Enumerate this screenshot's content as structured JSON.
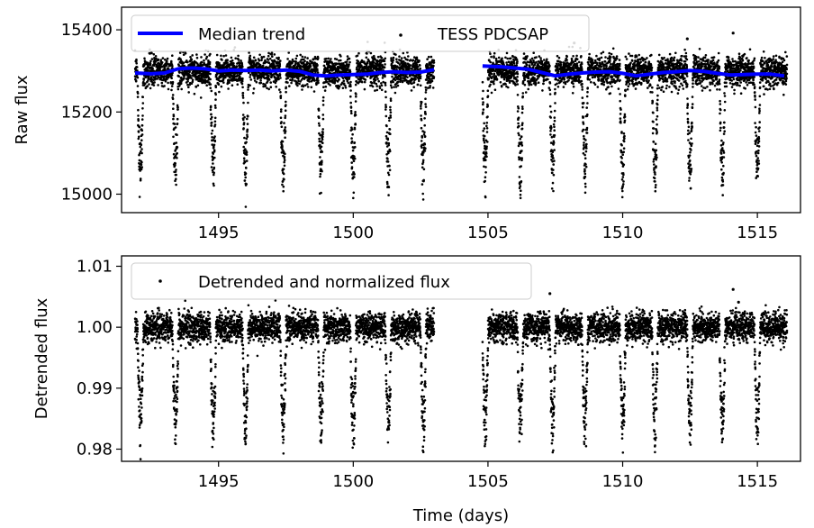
{
  "chart_data": [
    {
      "type": "scatter",
      "title": "",
      "xlabel": "",
      "ylabel": "Raw flux",
      "xlim": [
        1491.4,
        1516.6
      ],
      "ylim": [
        14955,
        15455
      ],
      "xticks": [
        1495,
        1500,
        1505,
        1510,
        1515
      ],
      "xtick_labels": [
        "1495",
        "1500",
        "1505",
        "1510",
        "1515"
      ],
      "yticks": [
        15000,
        15200,
        15400
      ],
      "ytick_labels": [
        "15000",
        "15200",
        "15400"
      ],
      "grid": false,
      "legend_position": "top",
      "series": [
        {
          "name": "Median trend",
          "kind": "line",
          "color": "#0000ff",
          "segments": [
            {
              "x": [
                1491.9,
                1492.5,
                1493.0,
                1493.5,
                1494.0,
                1494.5,
                1495.0,
                1495.5,
                1496.0,
                1496.5,
                1497.0,
                1497.5,
                1498.0,
                1498.5,
                1499.0,
                1499.5,
                1500.0,
                1500.5,
                1501.0,
                1501.5,
                1502.0,
                1502.5,
                1503.0
              ],
              "y": [
                15295,
                15293,
                15295,
                15305,
                15307,
                15305,
                15300,
                15302,
                15301,
                15302,
                15300,
                15302,
                15299,
                15290,
                15288,
                15290,
                15291,
                15292,
                15296,
                15298,
                15296,
                15297,
                15303
              ]
            },
            {
              "x": [
                1504.8,
                1505.5,
                1506.0,
                1506.5,
                1507.0,
                1507.5,
                1508.0,
                1508.5,
                1509.0,
                1509.5,
                1510.0,
                1510.5,
                1511.0,
                1511.5,
                1512.0,
                1512.5,
                1513.0,
                1513.5,
                1514.0,
                1514.5,
                1515.0,
                1515.5,
                1516.0
              ],
              "y": [
                15312,
                15310,
                15307,
                15304,
                15296,
                15288,
                15292,
                15295,
                15297,
                15298,
                15294,
                15288,
                15292,
                15296,
                15298,
                15301,
                15299,
                15294,
                15290,
                15291,
                15292,
                15292,
                15288
              ]
            }
          ]
        },
        {
          "name": "TESS PDCSAP",
          "kind": "points",
          "color": "#000000",
          "time_ranges": [
            [
              1491.9,
              1503.0
            ],
            [
              1504.8,
              1516.1
            ]
          ],
          "baseline": 15300,
          "scatter": 18,
          "transit_times": [
            1492.1,
            1493.4,
            1494.8,
            1496.0,
            1497.4,
            1498.8,
            1500.0,
            1501.3,
            1502.6,
            1504.9,
            1506.2,
            1507.4,
            1508.6,
            1510.0,
            1511.2,
            1512.5,
            1513.7,
            1515.0
          ],
          "transit_depth": 300,
          "outliers": [
            [
              1514.1,
              15392
            ],
            [
              1508.2,
              15368
            ],
            [
              1512.4,
              15378
            ]
          ]
        }
      ]
    },
    {
      "type": "scatter",
      "title": "",
      "xlabel": "Time (days)",
      "ylabel": "Detrended flux",
      "xlim": [
        1491.4,
        1516.6
      ],
      "ylim": [
        0.978,
        1.0117
      ],
      "xticks": [
        1495,
        1500,
        1505,
        1510,
        1515
      ],
      "xtick_labels": [
        "1495",
        "1500",
        "1505",
        "1510",
        "1515"
      ],
      "yticks": [
        0.98,
        0.99,
        1.0,
        1.01
      ],
      "ytick_labels": [
        "0.98",
        "0.99",
        "1.00",
        "1.01"
      ],
      "grid": false,
      "legend_position": "top-left",
      "series": [
        {
          "name": "Detrended and normalized flux",
          "kind": "points",
          "color": "#000000",
          "time_ranges": [
            [
              1491.9,
              1503.0
            ],
            [
              1504.8,
              1516.1
            ]
          ],
          "baseline": 1.0,
          "scatter": 0.0012,
          "transit_times": [
            1492.1,
            1493.4,
            1494.8,
            1496.0,
            1497.4,
            1498.8,
            1500.0,
            1501.3,
            1502.6,
            1504.9,
            1506.2,
            1507.4,
            1508.6,
            1510.0,
            1511.2,
            1512.5,
            1513.7,
            1515.0
          ],
          "transit_depth": 0.02,
          "outliers": [
            [
              1514.1,
              1.0062
            ],
            [
              1507.3,
              1.0055
            ],
            [
              1514.3,
              1.0041
            ]
          ]
        }
      ]
    }
  ]
}
